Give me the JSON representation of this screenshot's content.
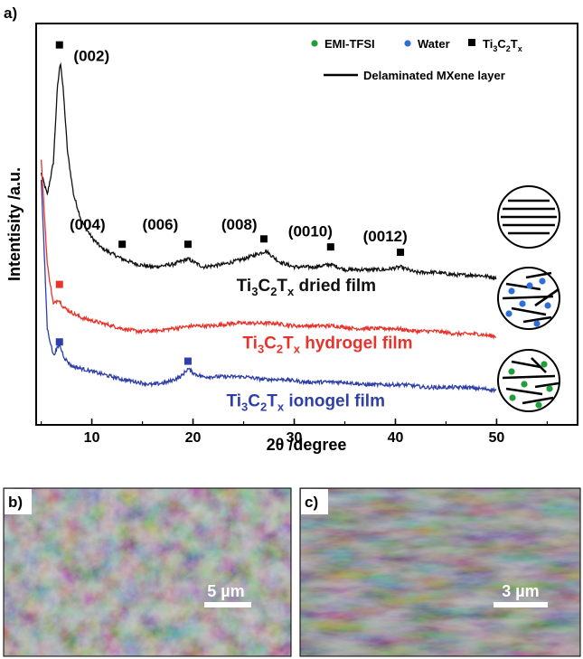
{
  "chart_data": [
    {
      "type": "line",
      "panel_label": "a)",
      "xlabel": "2θ /degree",
      "ylabel": "Intentisity /a.u.",
      "xlim": [
        4.5,
        58
      ],
      "x_ticks": [
        10,
        20,
        30,
        40,
        50
      ],
      "grid": false,
      "series": [
        {
          "name": "Ti3C2Tx dried film",
          "color": "#111111",
          "points": [
            [
              5.0,
              0.94
            ],
            [
              5.6,
              0.86
            ],
            [
              6.2,
              0.98
            ],
            [
              6.6,
              1.26
            ],
            [
              6.9,
              1.36
            ],
            [
              7.2,
              1.24
            ],
            [
              7.6,
              1.02
            ],
            [
              8.2,
              0.86
            ],
            [
              9.0,
              0.76
            ],
            [
              10.0,
              0.7
            ],
            [
              11.0,
              0.66
            ],
            [
              12.0,
              0.64
            ],
            [
              13.0,
              0.62
            ],
            [
              14.5,
              0.6
            ],
            [
              16.0,
              0.59
            ],
            [
              18.0,
              0.6
            ],
            [
              19.5,
              0.62
            ],
            [
              21.0,
              0.59
            ],
            [
              23.0,
              0.6
            ],
            [
              25.0,
              0.62
            ],
            [
              26.5,
              0.64
            ],
            [
              27.2,
              0.65
            ],
            [
              28.5,
              0.61
            ],
            [
              30.0,
              0.59
            ],
            [
              32.0,
              0.59
            ],
            [
              33.6,
              0.6
            ],
            [
              35.0,
              0.58
            ],
            [
              37.0,
              0.58
            ],
            [
              39.0,
              0.58
            ],
            [
              40.5,
              0.59
            ],
            [
              42.0,
              0.57
            ],
            [
              44.0,
              0.57
            ],
            [
              46.0,
              0.56
            ],
            [
              48.0,
              0.56
            ],
            [
              50.0,
              0.55
            ]
          ]
        },
        {
          "name": "Ti3C2Tx hydrogel film",
          "color": "#e8322a",
          "points": [
            [
              5.0,
              0.99
            ],
            [
              5.6,
              0.6
            ],
            [
              6.2,
              0.45
            ],
            [
              6.7,
              0.47
            ],
            [
              7.2,
              0.44
            ],
            [
              8.0,
              0.42
            ],
            [
              9.0,
              0.4
            ],
            [
              10.0,
              0.39
            ],
            [
              11.0,
              0.38
            ],
            [
              12.0,
              0.37
            ],
            [
              13.0,
              0.36
            ],
            [
              14.5,
              0.35
            ],
            [
              16.0,
              0.35
            ],
            [
              18.0,
              0.36
            ],
            [
              20.0,
              0.37
            ],
            [
              22.0,
              0.37
            ],
            [
              24.0,
              0.38
            ],
            [
              26.0,
              0.38
            ],
            [
              28.0,
              0.38
            ],
            [
              30.0,
              0.37
            ],
            [
              32.0,
              0.37
            ],
            [
              34.0,
              0.37
            ],
            [
              36.0,
              0.36
            ],
            [
              38.0,
              0.36
            ],
            [
              40.0,
              0.36
            ],
            [
              42.0,
              0.35
            ],
            [
              44.0,
              0.35
            ],
            [
              46.0,
              0.34
            ],
            [
              48.0,
              0.34
            ],
            [
              50.0,
              0.33
            ]
          ]
        },
        {
          "name": "Ti3C2Tx ionogel film",
          "color": "#2e3fa8",
          "points": [
            [
              5.0,
              0.92
            ],
            [
              5.6,
              0.36
            ],
            [
              6.2,
              0.26
            ],
            [
              6.8,
              0.3
            ],
            [
              7.3,
              0.25
            ],
            [
              8.0,
              0.22
            ],
            [
              9.0,
              0.21
            ],
            [
              10.0,
              0.2
            ],
            [
              11.0,
              0.19
            ],
            [
              12.0,
              0.18
            ],
            [
              13.0,
              0.17
            ],
            [
              14.5,
              0.16
            ],
            [
              16.0,
              0.15
            ],
            [
              17.5,
              0.16
            ],
            [
              18.8,
              0.18
            ],
            [
              19.5,
              0.21
            ],
            [
              20.2,
              0.19
            ],
            [
              21.0,
              0.18
            ],
            [
              23.0,
              0.18
            ],
            [
              25.0,
              0.18
            ],
            [
              27.0,
              0.17
            ],
            [
              29.0,
              0.17
            ],
            [
              31.0,
              0.16
            ],
            [
              33.0,
              0.16
            ],
            [
              35.0,
              0.16
            ],
            [
              37.0,
              0.15
            ],
            [
              39.0,
              0.15
            ],
            [
              41.0,
              0.15
            ],
            [
              43.0,
              0.14
            ],
            [
              45.0,
              0.14
            ],
            [
              47.0,
              0.14
            ],
            [
              50.0,
              0.13
            ]
          ]
        }
      ],
      "peak_markers": [
        {
          "x": 6.8,
          "y": 1.42,
          "color": "#000000"
        },
        {
          "x": 13.0,
          "y": 0.675,
          "color": "#000000"
        },
        {
          "x": 19.5,
          "y": 0.675,
          "color": "#000000"
        },
        {
          "x": 27.0,
          "y": 0.695,
          "color": "#000000"
        },
        {
          "x": 33.6,
          "y": 0.665,
          "color": "#000000"
        },
        {
          "x": 40.5,
          "y": 0.645,
          "color": "#000000"
        },
        {
          "x": 6.8,
          "y": 0.525,
          "color": "#e8322a"
        },
        {
          "x": 6.8,
          "y": 0.31,
          "color": "#2e3fa8"
        },
        {
          "x": 19.5,
          "y": 0.238,
          "color": "#2e3fa8"
        }
      ],
      "peak_labels": [
        {
          "text": "(002)",
          "x": 8.2,
          "y": 1.36
        },
        {
          "text": "(004)",
          "x": 7.8,
          "y": 0.73
        },
        {
          "text": "(006)",
          "x": 15.0,
          "y": 0.73
        },
        {
          "text": "(008)",
          "x": 22.8,
          "y": 0.73
        },
        {
          "text": "(0010)",
          "x": 29.4,
          "y": 0.705
        },
        {
          "text": "(0012)",
          "x": 36.8,
          "y": 0.685
        }
      ],
      "film_labels": [
        {
          "main": "Ti",
          "sub1": "3",
          "mid": "C",
          "sub2": "2",
          "mid2": "T",
          "sub3": "x",
          "rest": " dried film",
          "x": 24.3,
          "y": 0.5,
          "color": "#111111"
        },
        {
          "main": "Ti",
          "sub1": "3",
          "mid": "C",
          "sub2": "2",
          "mid2": "T",
          "sub3": "x",
          "rest": " hydrogel film",
          "x": 24.9,
          "y": 0.285,
          "color": "#e8322a"
        },
        {
          "main": "Ti",
          "sub1": "3",
          "mid": "C",
          "sub2": "2",
          "mid2": "T",
          "sub3": "x",
          "rest": " ionogel film",
          "x": 23.3,
          "y": 0.07,
          "color": "#2e3fa8"
        }
      ],
      "legend": {
        "position": "top-right",
        "items": [
          {
            "kind": "dot",
            "color": "#1f9e3a",
            "label": "EMI-TFSI"
          },
          {
            "kind": "dot",
            "color": "#2d6fd6",
            "label": "Water"
          },
          {
            "kind": "square",
            "color": "#000000",
            "label_main": "Ti",
            "sub1": "3",
            "mid": "C",
            "sub2": "2",
            "mid2": "T",
            "sub3": "x"
          },
          {
            "kind": "line",
            "color": "#000000",
            "label": "Delaminated MXene layer"
          }
        ]
      },
      "schematics": [
        "stacked layers",
        "layers with water",
        "layers with EMI-TFSI"
      ]
    }
  ],
  "micrographs": [
    {
      "panel_label": "b)",
      "scale_bar": "5 µm"
    },
    {
      "panel_label": "c)",
      "scale_bar": "3 µm"
    }
  ]
}
